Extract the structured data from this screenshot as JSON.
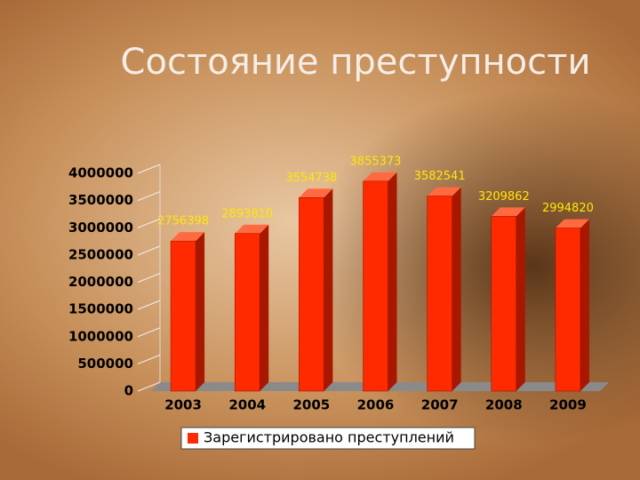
{
  "chart_data": {
    "type": "bar3d",
    "title": "Состояние преступности",
    "categories": [
      "2003",
      "2004",
      "2005",
      "2006",
      "2007",
      "2008",
      "2009"
    ],
    "series": [
      {
        "name": "Зарегистрировано преступлений",
        "color": "#ff2a00",
        "values": [
          2756398,
          2893810,
          3554738,
          3855373,
          3582541,
          3209862,
          2994820
        ]
      }
    ],
    "ylim": [
      0,
      4000000
    ],
    "yticks": [
      0,
      500000,
      1000000,
      1500000,
      2000000,
      2500000,
      3000000,
      3500000,
      4000000
    ],
    "legend": "bottom"
  }
}
